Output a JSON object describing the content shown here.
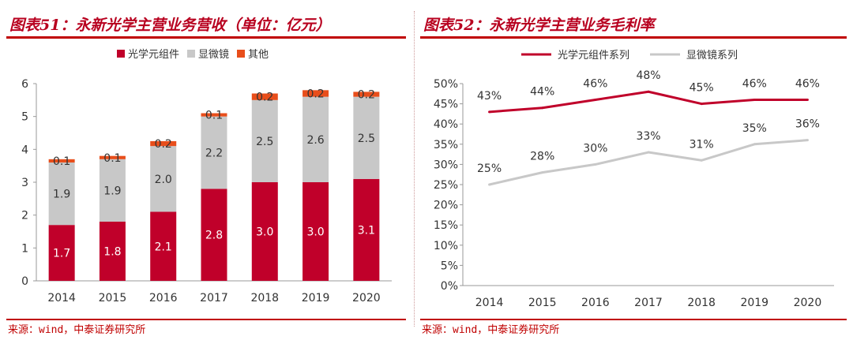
{
  "chart_data": [
    {
      "type": "bar",
      "stacked": true,
      "title": "图表51：永新光学主营业务营收（单位：亿元）",
      "categories": [
        "2014",
        "2015",
        "2016",
        "2017",
        "2018",
        "2019",
        "2020"
      ],
      "series": [
        {
          "name": "光学元组件",
          "color": "#c0002a",
          "values": [
            1.7,
            1.8,
            2.1,
            2.8,
            3.0,
            3.0,
            3.1
          ],
          "labels": [
            "1.7",
            "1.8",
            "2.1",
            "2.8",
            "3.0",
            "3.0",
            "3.1"
          ]
        },
        {
          "name": "显微镜",
          "color": "#c8c8c8",
          "values": [
            1.9,
            1.9,
            2.0,
            2.2,
            2.5,
            2.6,
            2.5
          ],
          "labels": [
            "1.9",
            "1.9",
            "2.0",
            "2.2",
            "2.5",
            "2.6",
            "2.5"
          ]
        },
        {
          "name": "其他",
          "color": "#e84e1b",
          "values": [
            0.1,
            0.1,
            0.15,
            0.1,
            0.2,
            0.2,
            0.15
          ],
          "labels": [
            "0.1",
            "0.1",
            "0.2",
            "0.1",
            "0.2",
            "0.2",
            "0.2"
          ]
        }
      ],
      "ylim": [
        0,
        6
      ],
      "yticks": [
        "0",
        "1",
        "2",
        "3",
        "4",
        "5",
        "6"
      ],
      "legend": "top",
      "source": "来源：wind，中泰证券研究所"
    },
    {
      "type": "line",
      "title": "图表52：永新光学主营业务毛利率",
      "categories": [
        "2014",
        "2015",
        "2016",
        "2017",
        "2018",
        "2019",
        "2020"
      ],
      "series": [
        {
          "name": "光学元组件系列",
          "color": "#c0002a",
          "values": [
            43,
            44,
            46,
            48,
            45,
            46,
            46
          ],
          "labels": [
            "43%",
            "44%",
            "46%",
            "48%",
            "45%",
            "46%",
            "46%"
          ]
        },
        {
          "name": "显微镜系列",
          "color": "#c8c8c8",
          "values": [
            25,
            28,
            30,
            33,
            31,
            35,
            36
          ],
          "labels": [
            "25%",
            "28%",
            "30%",
            "33%",
            "31%",
            "35%",
            "36%"
          ]
        }
      ],
      "ylim": [
        0,
        50
      ],
      "yticks": [
        "0%",
        "5%",
        "10%",
        "15%",
        "20%",
        "25%",
        "30%",
        "35%",
        "40%",
        "45%",
        "50%"
      ],
      "legend": "top",
      "source": "来源：wind，中泰证券研究所"
    }
  ]
}
